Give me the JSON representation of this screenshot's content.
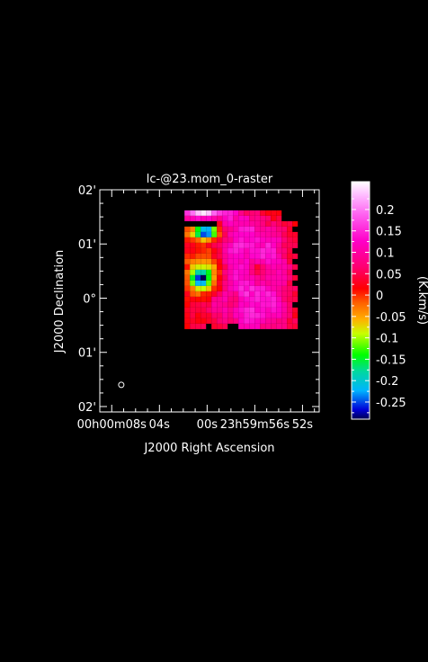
{
  "chart_data": {
    "type": "heatmap",
    "title": "lc-@23.mom_0-raster",
    "xlabel": "J2000 Right Ascension",
    "ylabel": "J2000 Declination",
    "x_ticks": [
      {
        "label": "00h00m08s",
        "ra_offset_s": 8
      },
      {
        "label": "04s",
        "ra_offset_s": 4
      },
      {
        "label": "00s",
        "ra_offset_s": 0
      },
      {
        "label": "23h59m56s",
        "ra_offset_s": -4
      },
      {
        "label": "52s",
        "ra_offset_s": -8
      }
    ],
    "y_ticks": [
      {
        "label": "02'",
        "dec_offset_arcmin": 2
      },
      {
        "label": "01'",
        "dec_offset_arcmin": 1
      },
      {
        "label": "0°",
        "dec_offset_arcmin": 0
      },
      {
        "label": "01'",
        "dec_offset_arcmin": -1
      },
      {
        "label": "02'",
        "dec_offset_arcmin": -2
      }
    ],
    "xlim": [
      9,
      -9.4
    ],
    "ylim": [
      -2.1,
      2.0
    ],
    "colorbar": {
      "label": "(K.km/s)",
      "ticks": [
        "0.2",
        "0.15",
        "0.1",
        "0.05",
        "0",
        "-0.05",
        "-0.1",
        "-0.15",
        "-0.2",
        "-0.25"
      ],
      "tick_values": [
        0.2,
        0.15,
        0.1,
        0.05,
        0,
        -0.05,
        -0.1,
        -0.15,
        -0.2,
        -0.25
      ],
      "vmin": -0.29,
      "vmax": 0.265
    },
    "beam": {
      "ra_offset_s": 7.2,
      "dec_offset_arcmin": -1.6
    },
    "features": [
      {
        "ra_s": 0.4,
        "dec_arcmin": 1.58,
        "value": 0.24,
        "w": 1.5,
        "h": 0.09
      },
      {
        "ra_s": 0.0,
        "dec_arcmin": 1.22,
        "value": -0.22,
        "w": 0.6,
        "h": 0.08
      },
      {
        "ra_s": 0.3,
        "dec_arcmin": 1.22,
        "value": -0.06,
        "w": 1.2,
        "h": 0.12
      },
      {
        "ra_s": 0.2,
        "dec_arcmin": 0.42,
        "value": -0.12,
        "w": 1.0,
        "h": 0.25
      },
      {
        "ra_s": 0.6,
        "dec_arcmin": 0.35,
        "value": -0.16,
        "w": 0.5,
        "h": 0.1
      },
      {
        "ra_s": -1.5,
        "dec_arcmin": 1.4,
        "value": 0.1,
        "w": 1.0,
        "h": 0.2
      },
      {
        "ra_s": -3.5,
        "dec_arcmin": 1.25,
        "value": 0.12,
        "w": 0.8,
        "h": 0.2
      },
      {
        "ra_s": -5.5,
        "dec_arcmin": 1.05,
        "value": 0.11,
        "w": 0.8,
        "h": 0.2
      },
      {
        "ra_s": -2.5,
        "dec_arcmin": 0.85,
        "value": 0.13,
        "w": 1.0,
        "h": 0.22
      },
      {
        "ra_s": -4.8,
        "dec_arcmin": 0.7,
        "value": 0.12,
        "w": 0.8,
        "h": 0.2
      },
      {
        "ra_s": -1.8,
        "dec_arcmin": 0.45,
        "value": 0.08,
        "w": 1.0,
        "h": 0.2
      },
      {
        "ra_s": -6.3,
        "dec_arcmin": 0.45,
        "value": 0.1,
        "w": 0.6,
        "h": 0.2
      },
      {
        "ra_s": -3.0,
        "dec_arcmin": 0.2,
        "value": 0.13,
        "w": 0.9,
        "h": 0.2
      },
      {
        "ra_s": -5.0,
        "dec_arcmin": 0.05,
        "value": 0.12,
        "w": 0.9,
        "h": 0.2
      },
      {
        "ra_s": -1.2,
        "dec_arcmin": -0.1,
        "value": 0.1,
        "w": 1.0,
        "h": 0.2
      },
      {
        "ra_s": -3.6,
        "dec_arcmin": -0.35,
        "value": 0.14,
        "w": 1.0,
        "h": 0.2
      },
      {
        "ra_s": -5.8,
        "dec_arcmin": -0.3,
        "value": 0.1,
        "w": 0.7,
        "h": 0.2
      },
      {
        "ra_s": -0.8,
        "dec_arcmin": 1.5,
        "value": -0.03,
        "w": 0.4,
        "h": 0.1
      },
      {
        "ra_s": -4.3,
        "dec_arcmin": 0.55,
        "value": -0.04,
        "w": 0.4,
        "h": 0.1
      },
      {
        "ra_s": -2.2,
        "dec_arcmin": -0.05,
        "value": -0.04,
        "w": 0.4,
        "h": 0.1
      }
    ]
  }
}
